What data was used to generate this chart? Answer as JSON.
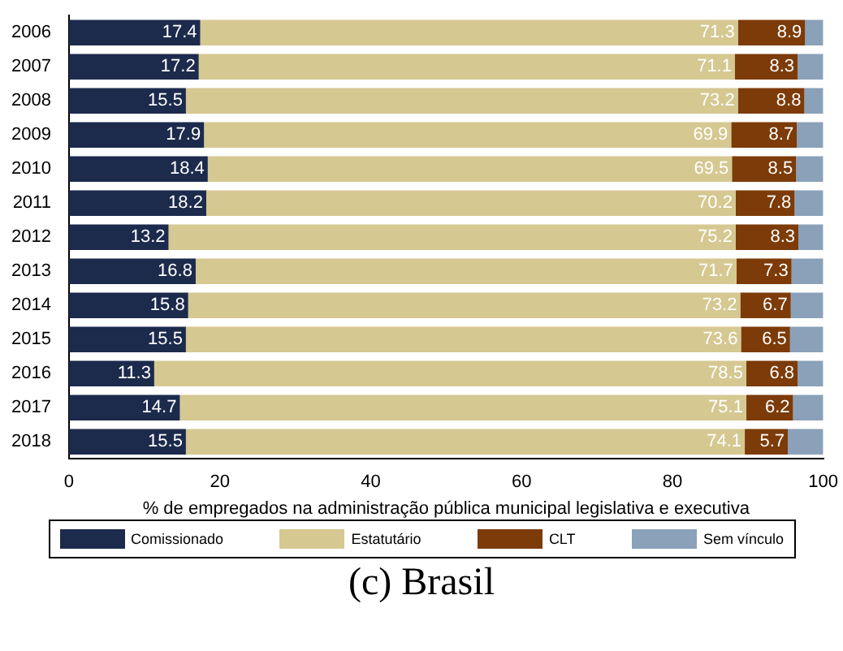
{
  "chart_data": {
    "type": "bar",
    "orientation": "horizontal",
    "stacked": true,
    "title": "(c) Brasil",
    "xlabel": "% de empregados na administração pública municipal legislativa e executiva",
    "categories": [
      "2006",
      "2007",
      "2008",
      "2009",
      "2010",
      "2011",
      "2012",
      "2013",
      "2014",
      "2015",
      "2016",
      "2017",
      "2018"
    ],
    "series": [
      {
        "name": "Comissionado",
        "color": "#1c2a4c",
        "values": [
          17.4,
          17.2,
          15.5,
          17.9,
          18.4,
          18.2,
          13.2,
          16.8,
          15.8,
          15.5,
          11.3,
          14.7,
          15.5
        ],
        "value_labels": [
          "17.4",
          "17.2",
          "15.5",
          "17.9",
          "18.4",
          "18.2",
          "13.2",
          "16.8",
          "15.8",
          "15.5",
          "11.3",
          "14.7",
          "15.5"
        ]
      },
      {
        "name": "Estatutário",
        "color": "#d5c891",
        "values": [
          71.3,
          71.1,
          73.2,
          69.9,
          69.5,
          70.2,
          75.2,
          71.7,
          73.2,
          73.6,
          78.5,
          75.1,
          74.1
        ],
        "value_labels": [
          "71.3",
          "71.1",
          "73.2",
          "69.9",
          "69.5",
          "70.2",
          "75.2",
          "71.7",
          "73.2",
          "73.6",
          "78.5",
          "75.1",
          "74.1"
        ]
      },
      {
        "name": "CLT",
        "color": "#7c3b08",
        "values": [
          8.9,
          8.3,
          8.8,
          8.7,
          8.5,
          7.8,
          8.3,
          7.3,
          6.7,
          6.5,
          6.8,
          6.2,
          5.7
        ],
        "value_labels": [
          "8.9",
          "8.3",
          "8.8",
          "8.7",
          "8.5",
          "7.8",
          "8.3",
          "7.3",
          "6.7",
          "6.5",
          "6.8",
          "6.2",
          "5.7"
        ]
      },
      {
        "name": "Sem vínculo",
        "color": "#8aa1b9",
        "values": [
          2.4,
          3.4,
          2.5,
          3.5,
          3.6,
          3.8,
          3.3,
          4.2,
          4.3,
          4.4,
          3.4,
          4.0,
          4.7
        ]
      }
    ],
    "xlim": [
      0,
      100
    ],
    "xticks": [
      0,
      20,
      40,
      60,
      80,
      100
    ],
    "grid": false,
    "legend": "bottom"
  }
}
